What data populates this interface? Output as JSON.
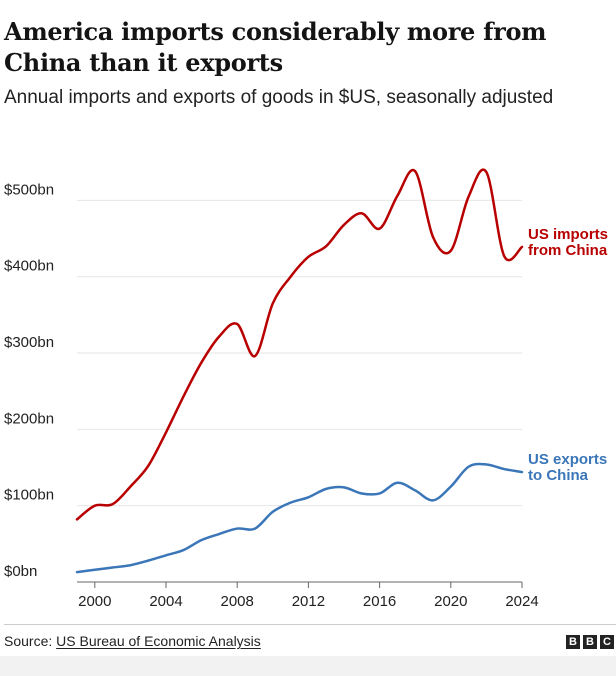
{
  "header": {
    "title": "America imports considerably more from China than it exports",
    "subtitle": "Annual imports and exports of goods in $US, seasonally adjusted"
  },
  "footer": {
    "source_label": "Source: ",
    "source_link": "US Bureau of Economic Analysis",
    "logo_letters": [
      "B",
      "B",
      "C"
    ]
  },
  "chart_data": {
    "type": "line",
    "ylim": [
      0,
      500
    ],
    "yticks": [
      0,
      100,
      200,
      300,
      400,
      500
    ],
    "ytick_labels": [
      "$0bn",
      "$100bn",
      "$200bn",
      "$300bn",
      "$400bn",
      "$500bn"
    ],
    "xlim": [
      1999,
      2024
    ],
    "xticks": [
      2000,
      2004,
      2008,
      2012,
      2016,
      2020,
      2024
    ],
    "xtick_labels": [
      "2000",
      "2004",
      "2008",
      "2012",
      "2016",
      "2020",
      "2024"
    ],
    "grid": true,
    "series": [
      {
        "key": "imports",
        "name": "US imports from China",
        "label_lines": [
          "US imports",
          "from China"
        ],
        "color": "#b80000",
        "points": [
          [
            1999,
            82
          ],
          [
            2000,
            100
          ],
          [
            2001,
            102
          ],
          [
            2002,
            125
          ],
          [
            2003,
            152
          ],
          [
            2004,
            196
          ],
          [
            2005,
            244
          ],
          [
            2006,
            288
          ],
          [
            2007,
            322
          ],
          [
            2008,
            338
          ],
          [
            2009,
            296
          ],
          [
            2010,
            365
          ],
          [
            2011,
            400
          ],
          [
            2012,
            426
          ],
          [
            2013,
            440
          ],
          [
            2014,
            468
          ],
          [
            2015,
            483
          ],
          [
            2016,
            463
          ],
          [
            2017,
            506
          ],
          [
            2018,
            538
          ],
          [
            2019,
            452
          ],
          [
            2020,
            434
          ],
          [
            2021,
            505
          ],
          [
            2022,
            537
          ],
          [
            2023,
            427
          ],
          [
            2024,
            439
          ]
        ]
      },
      {
        "key": "exports",
        "name": "US exports to China",
        "label_lines": [
          "US exports",
          "to China"
        ],
        "color": "#3a76b8",
        "points": [
          [
            1999,
            13
          ],
          [
            2000,
            16
          ],
          [
            2001,
            19
          ],
          [
            2002,
            22
          ],
          [
            2003,
            28
          ],
          [
            2004,
            35
          ],
          [
            2005,
            42
          ],
          [
            2006,
            55
          ],
          [
            2007,
            63
          ],
          [
            2008,
            70
          ],
          [
            2009,
            70
          ],
          [
            2010,
            92
          ],
          [
            2011,
            104
          ],
          [
            2012,
            111
          ],
          [
            2013,
            122
          ],
          [
            2014,
            124
          ],
          [
            2015,
            116
          ],
          [
            2016,
            116
          ],
          [
            2017,
            130
          ],
          [
            2018,
            120
          ],
          [
            2019,
            107
          ],
          [
            2020,
            125
          ],
          [
            2021,
            151
          ],
          [
            2022,
            154
          ],
          [
            2023,
            148
          ],
          [
            2024,
            144
          ]
        ]
      }
    ]
  }
}
